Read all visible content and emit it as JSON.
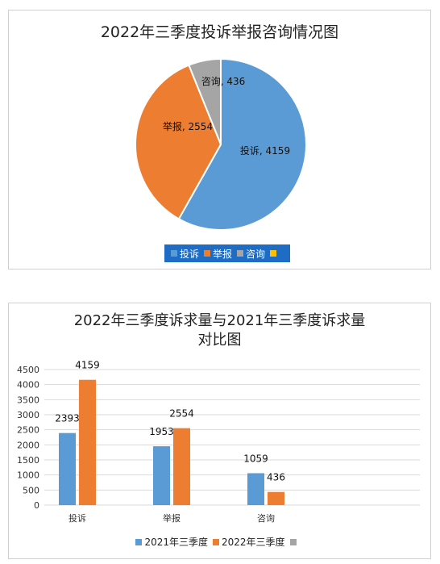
{
  "chart_data": [
    {
      "type": "pie",
      "title": "2022年三季度投诉举报咨询情况图",
      "categories": [
        "投诉",
        "举报",
        "咨询"
      ],
      "values": [
        4159,
        2554,
        436
      ],
      "data_labels": [
        "投诉, 4159",
        "举报, 2554",
        "咨询, 436"
      ],
      "colors": [
        "#5b9bd5",
        "#ed7d31",
        "#a5a5a5"
      ],
      "legend": {
        "position": "bottom",
        "entries": [
          "投诉",
          "举报",
          "咨询",
          ""
        ],
        "colors": [
          "#5b9bd5",
          "#ed7d31",
          "#a5a5a5",
          "#ffc000"
        ]
      }
    },
    {
      "type": "bar",
      "title_line1": "2022年三季度诉求量与2021年三季度诉求量",
      "title_line2": "对比图",
      "categories": [
        "投诉",
        "举报",
        "咨询"
      ],
      "series": [
        {
          "name": "2021年三季度",
          "values": [
            2393,
            1953,
            1059
          ],
          "color": "#5b9bd5"
        },
        {
          "name": "2022年三季度",
          "values": [
            4159,
            2554,
            436
          ],
          "color": "#ed7d31"
        }
      ],
      "ylim": [
        0,
        4500
      ],
      "yticks": [
        0,
        500,
        1000,
        1500,
        2000,
        2500,
        3000,
        3500,
        4000,
        4500
      ],
      "grid": true,
      "legend": {
        "position": "bottom",
        "entries": [
          "2021年三季度",
          "2022年三季度",
          ""
        ],
        "colors": [
          "#5b9bd5",
          "#ed7d31",
          "#a5a5a5"
        ]
      }
    }
  ]
}
